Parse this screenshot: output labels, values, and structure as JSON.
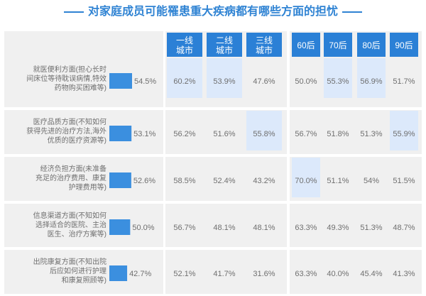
{
  "title": "对家庭成员可能罹患重大疾病都有哪些方面的担忧",
  "colors": {
    "accent": "#2f83d3",
    "header": "#2b80d6",
    "bar": "#3b8fdf",
    "highlight": "#dce9fb",
    "panel": "#f0f0f0",
    "text": "#6f6f6f"
  },
  "chart_data": {
    "type": "table",
    "title": "对家庭成员可能罹患重大疾病都有哪些方面的担忧",
    "group_headers": {
      "city_tier": [
        [
          "一线",
          "城市"
        ],
        [
          "二线",
          "城市"
        ],
        [
          "三线",
          "城市"
        ]
      ],
      "birth_cohort": [
        "60后",
        "70后",
        "80后",
        "90后"
      ]
    },
    "categories": [
      [
        "就医便利方面(担心长时",
        "间床位等待耽误病情,特效",
        "药物购买困难等)"
      ],
      [
        "医疗品质方面(不知如何",
        "获得先进的治疗方法,海外",
        "优质的医疗资源等)"
      ],
      [
        "经济负担方面(未准备",
        "充足的治疗费用、康复",
        "护理费用等)"
      ],
      [
        "信息渠道方面(不知如何",
        "选择适合的医院、主治",
        "医生、治疗方案等)"
      ],
      [
        "出院康复方面(不知出院",
        "后应如何进行护理",
        "和康复照顾等)"
      ]
    ],
    "overall": {
      "values": [
        54.5,
        53.1,
        52.6,
        50.0,
        42.7
      ],
      "labels": [
        "54.5%",
        "53.1%",
        "52.6%",
        "50.0%",
        "42.7%"
      ]
    },
    "rows": [
      [
        "60.2%",
        "53.9%",
        "47.6%",
        "50.0%",
        "55.3%",
        "56.9%",
        "51.7%"
      ],
      [
        "56.2%",
        "51.6%",
        "55.8%",
        "56.7%",
        "51.8%",
        "51.3%",
        "55.9%"
      ],
      [
        "58.5%",
        "52.4%",
        "43.2%",
        "70.0%",
        "51.1%",
        "54%",
        "51.5%"
      ],
      [
        "56.7%",
        "48.1%",
        "48.1%",
        "63.3%",
        "49.3%",
        "51.3%",
        "48.7%"
      ],
      [
        "52.1%",
        "41.7%",
        "31.6%",
        "63.3%",
        "40.0%",
        "45.4%",
        "41.3%"
      ]
    ],
    "highlighted": [
      [
        true,
        true,
        false,
        false,
        true,
        true,
        false
      ],
      [
        false,
        false,
        true,
        false,
        false,
        false,
        true
      ],
      [
        false,
        false,
        false,
        true,
        false,
        false,
        false
      ],
      [
        false,
        false,
        false,
        false,
        false,
        false,
        false
      ],
      [
        false,
        false,
        false,
        false,
        false,
        false,
        false
      ]
    ]
  }
}
